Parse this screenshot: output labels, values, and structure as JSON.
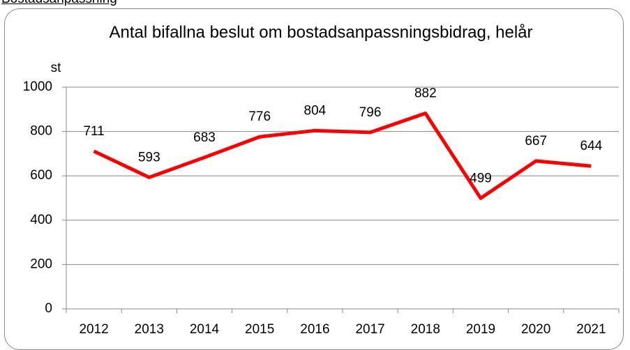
{
  "heading": "Bostadsanpassning",
  "chart_data": {
    "type": "line",
    "title": "Antal bifallna beslut om bostadsanpassningsbidrag, helår",
    "y_label": "st",
    "categories": [
      "2012",
      "2013",
      "2014",
      "2015",
      "2016",
      "2017",
      "2018",
      "2019",
      "2020",
      "2021"
    ],
    "values": [
      711,
      593,
      683,
      776,
      804,
      796,
      882,
      499,
      667,
      644
    ],
    "color": "#ff0000",
    "ylim": [
      0,
      1000
    ],
    "yticks": [
      0,
      200,
      400,
      600,
      800,
      1000
    ],
    "grid": true
  }
}
